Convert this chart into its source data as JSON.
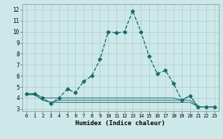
{
  "xlabel": "Humidex (Indice chaleur)",
  "ylabel": "",
  "bg_color": "#cce8e8",
  "grid_color": "#aacccc",
  "line_color": "#1a6b6b",
  "xlim": [
    -0.5,
    23.5
  ],
  "ylim": [
    2.8,
    12.5
  ],
  "yticks": [
    3,
    4,
    5,
    6,
    7,
    8,
    9,
    10,
    11,
    12
  ],
  "xticks": [
    0,
    1,
    2,
    3,
    4,
    5,
    6,
    7,
    8,
    9,
    10,
    11,
    12,
    13,
    14,
    15,
    16,
    17,
    18,
    19,
    20,
    21,
    22,
    23
  ],
  "series": [
    {
      "x": [
        0,
        1,
        2,
        3,
        4,
        5,
        6,
        7,
        8,
        9,
        10,
        11,
        12,
        13,
        14,
        15,
        16,
        17,
        18,
        19,
        20,
        21,
        22,
        23
      ],
      "y": [
        4.4,
        4.4,
        4.0,
        3.5,
        4.0,
        4.8,
        4.5,
        5.5,
        6.0,
        7.5,
        10.0,
        9.9,
        10.0,
        11.9,
        10.0,
        7.8,
        6.2,
        6.5,
        5.3,
        3.8,
        4.2,
        3.2,
        3.2,
        3.2
      ],
      "marker": "D",
      "markersize": 2.5,
      "linewidth": 1.0,
      "linestyle": "--"
    },
    {
      "x": [
        0,
        1,
        2,
        3,
        4,
        5,
        6,
        7,
        8,
        9,
        10,
        11,
        12,
        13,
        14,
        15,
        16,
        17,
        18,
        19,
        20,
        21,
        22,
        23
      ],
      "y": [
        4.4,
        4.4,
        4.0,
        4.0,
        4.0,
        4.0,
        4.0,
        4.0,
        4.0,
        4.0,
        4.0,
        4.0,
        4.0,
        4.0,
        4.0,
        4.0,
        4.0,
        4.0,
        4.0,
        3.8,
        3.8,
        3.2,
        3.2,
        3.2
      ],
      "marker": null,
      "markersize": 0,
      "linewidth": 0.7,
      "linestyle": "-"
    },
    {
      "x": [
        0,
        1,
        2,
        3,
        4,
        5,
        6,
        7,
        8,
        9,
        10,
        11,
        12,
        13,
        14,
        15,
        16,
        17,
        18,
        19,
        20,
        21,
        22,
        23
      ],
      "y": [
        4.3,
        4.3,
        3.8,
        3.6,
        3.6,
        3.6,
        3.6,
        3.6,
        3.6,
        3.6,
        3.6,
        3.6,
        3.6,
        3.6,
        3.6,
        3.6,
        3.6,
        3.6,
        3.6,
        3.6,
        3.6,
        3.2,
        3.2,
        3.2
      ],
      "marker": null,
      "markersize": 0,
      "linewidth": 0.7,
      "linestyle": "-"
    },
    {
      "x": [
        0,
        1,
        2,
        3,
        4,
        5,
        6,
        7,
        8,
        9,
        10,
        11,
        12,
        13,
        14,
        15,
        16,
        17,
        18,
        19,
        20,
        21,
        22,
        23
      ],
      "y": [
        4.3,
        4.3,
        3.8,
        3.6,
        3.8,
        3.8,
        3.8,
        3.8,
        3.8,
        3.8,
        3.8,
        3.8,
        3.8,
        3.8,
        3.8,
        3.8,
        3.8,
        3.8,
        3.8,
        3.8,
        4.2,
        3.2,
        3.2,
        3.2
      ],
      "marker": null,
      "markersize": 0,
      "linewidth": 0.7,
      "linestyle": "-"
    }
  ]
}
